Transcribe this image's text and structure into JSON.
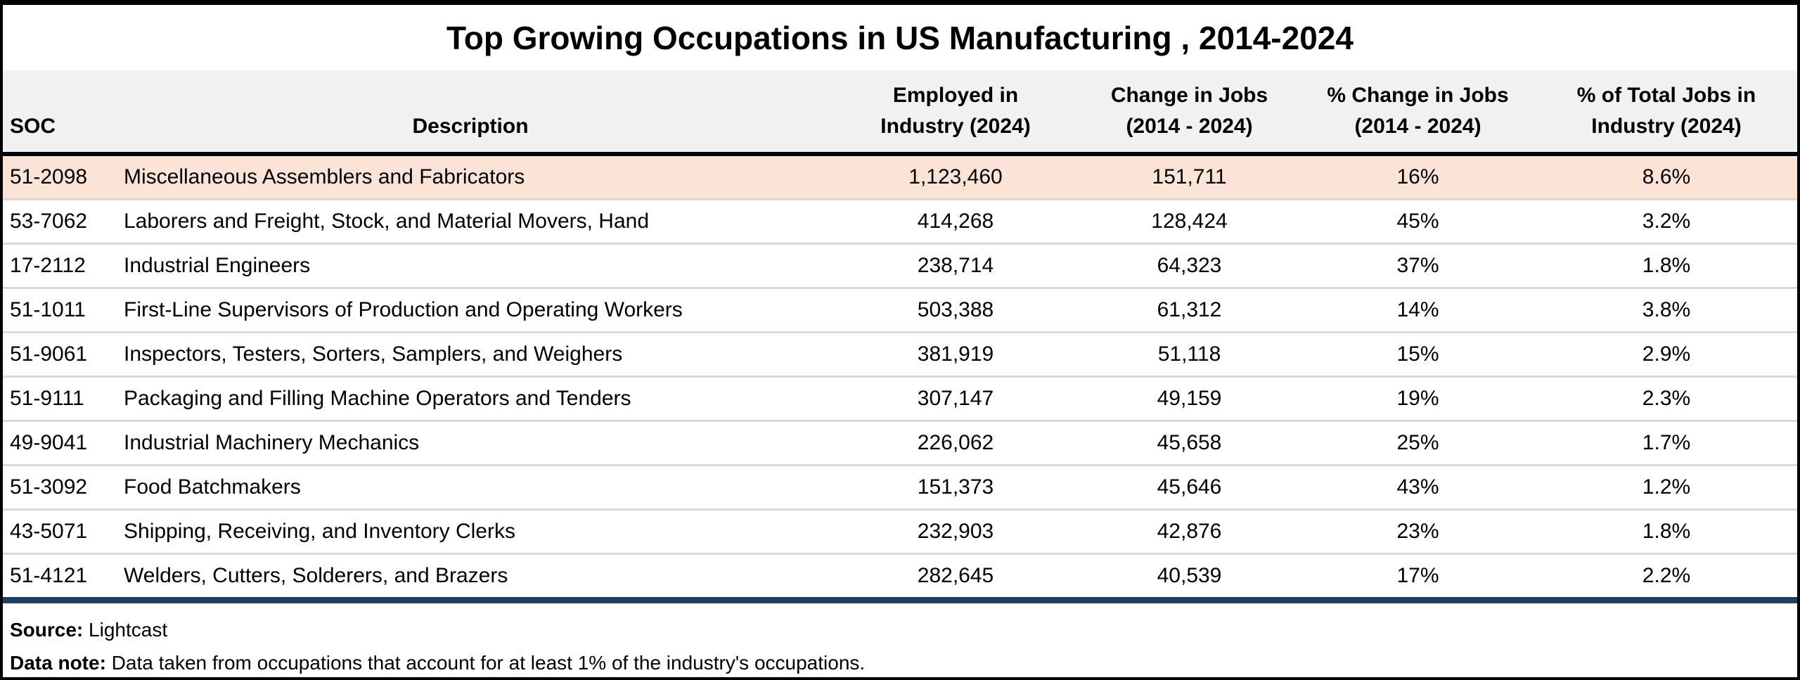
{
  "title": "Top Growing Occupations in US Manufacturing , 2014-2024",
  "colors": {
    "highlight_row": "#FBE3D5",
    "header_background": "#F1F1F1",
    "row_divider": "#D9D9D9",
    "accent_rule": "#1B3F66",
    "outer_border": "#000000"
  },
  "table": {
    "columns": {
      "soc": {
        "label": "SOC"
      },
      "description": {
        "label": "Description"
      },
      "employed": {
        "line1": "Employed in",
        "line2": "Industry (2024)"
      },
      "change": {
        "line1": "Change in Jobs",
        "line2": "(2014 - 2024)"
      },
      "pct_change": {
        "line1": "% Change in Jobs",
        "line2": "(2014 - 2024)"
      },
      "pct_total": {
        "line1": "% of Total Jobs in",
        "line2": "Industry (2024)"
      }
    },
    "rows": [
      {
        "soc": "51-2098",
        "description": "Miscellaneous Assemblers and Fabricators",
        "employed": "1,123,460",
        "change": "151,711",
        "pct_change": "16%",
        "pct_total": "8.6%"
      },
      {
        "soc": "53-7062",
        "description": "Laborers and Freight, Stock, and Material Movers, Hand",
        "employed": "414,268",
        "change": "128,424",
        "pct_change": "45%",
        "pct_total": "3.2%"
      },
      {
        "soc": "17-2112",
        "description": "Industrial Engineers",
        "employed": "238,714",
        "change": "64,323",
        "pct_change": "37%",
        "pct_total": "1.8%"
      },
      {
        "soc": "51-1011",
        "description": "First-Line Supervisors of Production and Operating Workers",
        "employed": "503,388",
        "change": "61,312",
        "pct_change": "14%",
        "pct_total": "3.8%"
      },
      {
        "soc": "51-9061",
        "description": "Inspectors, Testers, Sorters, Samplers, and Weighers",
        "employed": "381,919",
        "change": "51,118",
        "pct_change": "15%",
        "pct_total": "2.9%"
      },
      {
        "soc": "51-9111",
        "description": "Packaging and Filling Machine Operators and Tenders",
        "employed": "307,147",
        "change": "49,159",
        "pct_change": "19%",
        "pct_total": "2.3%"
      },
      {
        "soc": "49-9041",
        "description": "Industrial Machinery Mechanics",
        "employed": "226,062",
        "change": "45,658",
        "pct_change": "25%",
        "pct_total": "1.7%"
      },
      {
        "soc": "51-3092",
        "description": "Food Batchmakers",
        "employed": "151,373",
        "change": "45,646",
        "pct_change": "43%",
        "pct_total": "1.2%"
      },
      {
        "soc": "43-5071",
        "description": "Shipping, Receiving, and Inventory Clerks",
        "employed": "232,903",
        "change": "42,876",
        "pct_change": "23%",
        "pct_total": "1.8%"
      },
      {
        "soc": "51-4121",
        "description": "Welders, Cutters, Solderers, and Brazers",
        "employed": "282,645",
        "change": "40,539",
        "pct_change": "17%",
        "pct_total": "2.2%"
      }
    ],
    "highlighted_row_index": 0
  },
  "footer": {
    "source_label": "Source:",
    "source_value": " Lightcast",
    "note_label": "Data note:",
    "note_value": " Data taken from occupations that account for at least 1% of the industry's occupations."
  },
  "chart_data": {
    "type": "table",
    "title": "Top Growing Occupations in US Manufacturing , 2014-2024",
    "columns": [
      "SOC",
      "Description",
      "Employed in Industry (2024)",
      "Change in Jobs (2014 - 2024)",
      "% Change in Jobs (2014 - 2024)",
      "% of Total Jobs in Industry (2024)"
    ],
    "rows": [
      [
        "51-2098",
        "Miscellaneous Assemblers and Fabricators",
        1123460,
        151711,
        16,
        8.6
      ],
      [
        "53-7062",
        "Laborers and Freight, Stock, and Material Movers, Hand",
        414268,
        128424,
        45,
        3.2
      ],
      [
        "17-2112",
        "Industrial Engineers",
        238714,
        64323,
        37,
        1.8
      ],
      [
        "51-1011",
        "First-Line Supervisors of Production and Operating Workers",
        503388,
        61312,
        14,
        3.8
      ],
      [
        "51-9061",
        "Inspectors, Testers, Sorters, Samplers, and Weighers",
        381919,
        51118,
        15,
        2.9
      ],
      [
        "51-9111",
        "Packaging and Filling Machine Operators and Tenders",
        307147,
        49159,
        19,
        2.3
      ],
      [
        "49-9041",
        "Industrial Machinery Mechanics",
        226062,
        45658,
        25,
        1.7
      ],
      [
        "51-3092",
        "Food Batchmakers",
        151373,
        45646,
        43,
        1.2
      ],
      [
        "43-5071",
        "Shipping, Receiving, and Inventory Clerks",
        232903,
        42876,
        23,
        1.8
      ],
      [
        "51-4121",
        "Welders, Cutters, Solderers, and Brazers",
        282645,
        40539,
        17,
        2.2
      ]
    ],
    "notes": [
      "Source: Lightcast",
      "Data note: Data taken from occupations that account for at least 1% of the industry's occupations."
    ],
    "highlighted_row": "51-2098"
  }
}
